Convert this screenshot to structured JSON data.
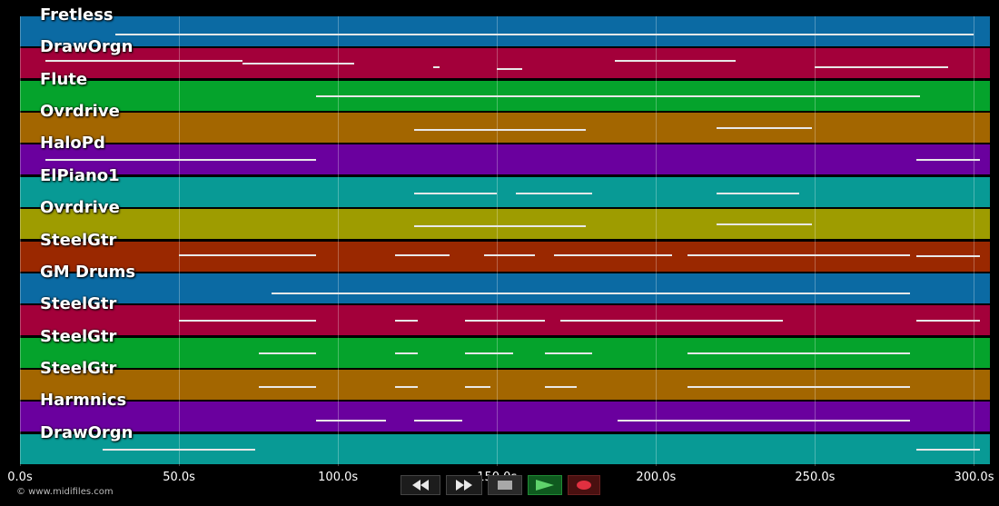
{
  "timeline": {
    "ticks": [
      "0.0s",
      "50.0s",
      "100.0s",
      "150.0s",
      "200.0s",
      "250.0s",
      "300.0s"
    ],
    "tick_seconds": [
      0,
      50,
      100,
      150,
      200,
      250,
      300
    ],
    "max_seconds": 305
  },
  "tracks": [
    {
      "name": "Fretless",
      "color": "#0b6aa3"
    },
    {
      "name": "DrawOrgn",
      "color": "#a3003a"
    },
    {
      "name": "Flute",
      "color": "#05a32c"
    },
    {
      "name": "Ovrdrive",
      "color": "#a36600"
    },
    {
      "name": "HaloPd",
      "color": "#6a009e"
    },
    {
      "name": "ElPiano1",
      "color": "#089a95"
    },
    {
      "name": "Ovrdrive",
      "color": "#9e9c00"
    },
    {
      "name": "SteelGtr",
      "color": "#9a2800"
    },
    {
      "name": "GM Drums",
      "color": "#0b6aa3"
    },
    {
      "name": "SteelGtr",
      "color": "#a3003a"
    },
    {
      "name": "SteelGtr",
      "color": "#05a32c"
    },
    {
      "name": "SteelGtr",
      "color": "#a36600"
    },
    {
      "name": "Harmnics",
      "color": "#6a009e"
    },
    {
      "name": "DrawOrgn",
      "color": "#089a95"
    }
  ],
  "controls": {
    "rewind_icon": "rewind-icon",
    "fast_forward_icon": "fast-forward-icon",
    "stop_icon": "stop-icon",
    "play_icon": "play-icon",
    "record_icon": "record-icon"
  },
  "footer": {
    "copyright": "© www.midifiles.com"
  }
}
